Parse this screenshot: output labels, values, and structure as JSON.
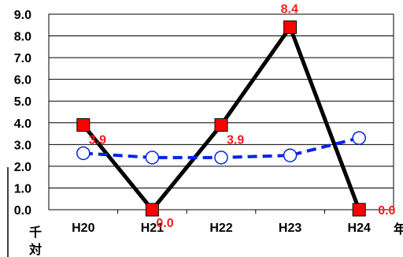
{
  "chart_data": {
    "type": "line",
    "categories": [
      "H20",
      "H21",
      "H22",
      "H23",
      "H24"
    ],
    "ylim": [
      0,
      9
    ],
    "yticks": [
      "0.0",
      "1.0",
      "2.0",
      "3.0",
      "4.0",
      "5.0",
      "6.0",
      "7.0",
      "8.0",
      "9.0"
    ],
    "grid": true,
    "unit_left": "千対",
    "unit_right": "年",
    "series": [
      {
        "values": [
          3.9,
          0.0,
          3.9,
          8.4,
          0.0
        ],
        "data_labels": [
          "3.9",
          "0.0",
          "3.9",
          "8.4",
          "0.0"
        ],
        "style": "solid",
        "line_color": "#000000",
        "marker": "square",
        "marker_color": "#ff0000"
      },
      {
        "values": [
          2.6,
          2.4,
          2.4,
          2.5,
          3.3
        ],
        "style": "dashed",
        "line_color": "#0022ee",
        "marker": "circle-open",
        "marker_color": "#0022ee"
      }
    ]
  }
}
